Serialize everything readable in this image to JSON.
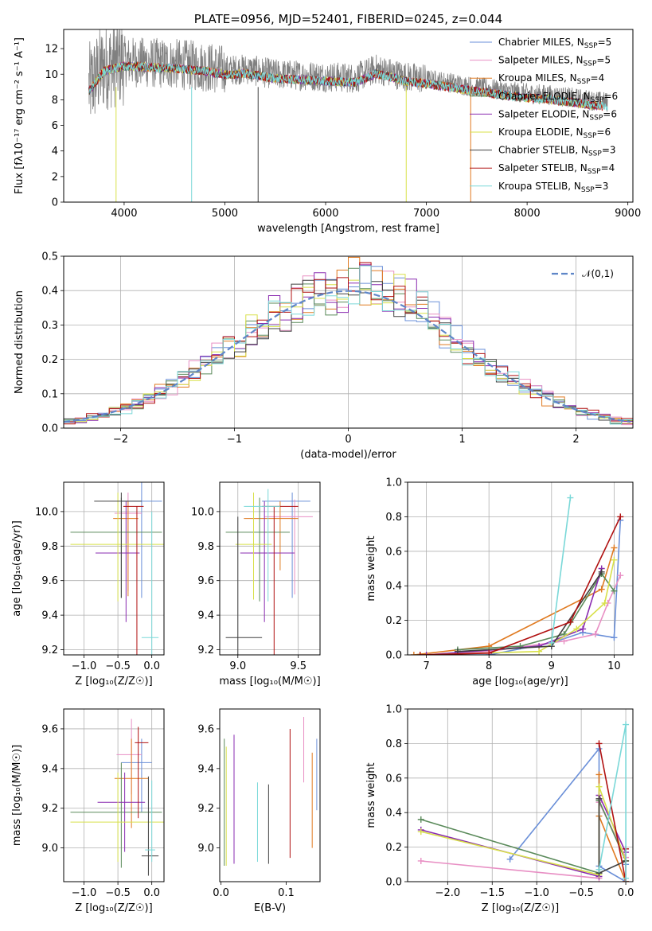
{
  "colors": [
    "#6a8fd8",
    "#e88fc4",
    "#e07a20",
    "#5a8a5a",
    "#8a2bb0",
    "#d8e04a",
    "#404040",
    "#b01010",
    "#7ad8d8"
  ],
  "chart_data": [
    {
      "id": "spectrum",
      "type": "line",
      "title": "PLATE=0956, MJD=52401, FIBERID=0245, z=0.044",
      "xlabel": "wavelength [Angstrom, rest frame]",
      "ylabel": "Flux [fλ10⁻¹⁷ erg cm⁻² s⁻¹ A⁻¹]",
      "xlim": [
        3400,
        9050
      ],
      "ylim": [
        0,
        13.5
      ],
      "xticks": [
        4000,
        5000,
        6000,
        7000,
        8000,
        9000
      ],
      "yticks": [
        0,
        2,
        4,
        6,
        8,
        10,
        12
      ],
      "grid": false,
      "legend_position": "upper right",
      "legend": [
        {
          "name": "Chabrier MILES",
          "n": "N",
          "sub": "SSP",
          "eq": "=5"
        },
        {
          "name": "Salpeter MILES",
          "n": "N",
          "sub": "SSP",
          "eq": "=5"
        },
        {
          "name": "Kroupa MILES",
          "n": "N",
          "sub": "SSP",
          "eq": "=4"
        },
        {
          "name": "Chabrier ELODIE",
          "n": "N",
          "sub": "SSP",
          "eq": "=6"
        },
        {
          "name": "Salpeter ELODIE",
          "n": "N",
          "sub": "SSP",
          "eq": "=6"
        },
        {
          "name": "Kroupa ELODIE",
          "n": "N",
          "sub": "SSP",
          "eq": "=6"
        },
        {
          "name": "Chabrier STELIB",
          "n": "N",
          "sub": "SSP",
          "eq": "=3"
        },
        {
          "name": "Salpeter STELIB",
          "n": "N",
          "sub": "SSP",
          "eq": "=4"
        },
        {
          "name": "Kroupa STELIB",
          "n": "N",
          "sub": "SSP",
          "eq": "=3"
        }
      ],
      "continuum_x": [
        3650,
        3800,
        4000,
        4200,
        4500,
        4800,
        5000,
        5200,
        5500,
        5800,
        6000,
        6300,
        6500,
        6800,
        7000,
        7200,
        7400,
        7600,
        7800,
        8000,
        8200,
        8500,
        8800
      ],
      "continuum_y": [
        9.0,
        10.6,
        11.0,
        10.9,
        10.8,
        10.6,
        10.3,
        10.4,
        10.0,
        9.9,
        9.8,
        9.7,
        10.4,
        9.8,
        9.6,
        9.4,
        9.1,
        8.9,
        8.7,
        8.5,
        8.4,
        8.1,
        7.8
      ]
    },
    {
      "id": "residuals",
      "type": "histogram",
      "xlabel": "(data-model)/error",
      "ylabel": "Normed distribution",
      "xlim": [
        -2.5,
        2.5
      ],
      "ylim": [
        0,
        0.5
      ],
      "xticks": [
        -2,
        -1,
        0,
        1,
        2
      ],
      "yticks": [
        0.0,
        0.1,
        0.2,
        0.3,
        0.4,
        0.5
      ],
      "grid": true,
      "legend_position": "upper right",
      "legend": [
        "𝒩(0,1)"
      ],
      "bin_edges_start": -2.5,
      "bin_width": 0.1,
      "reference_curve": "gaussian mean 0 sigma 1"
    },
    {
      "id": "z-vs-age",
      "type": "errorbar",
      "xlabel": "Z [log₁₀(Z/Z☉)]",
      "ylabel": "age  [log₁₀(age/yr)]",
      "xlim": [
        -1.3,
        0.18
      ],
      "ylim": [
        9.17,
        10.17
      ],
      "xticks": [
        -1.0,
        -0.5,
        0.0
      ],
      "yticks": [
        9.2,
        9.4,
        9.6,
        9.8,
        10.0
      ],
      "grid": true,
      "points": [
        {
          "x": -0.15,
          "xerr": [
            0.3,
            0.3
          ],
          "y": 10.06,
          "yerr": [
            0.56,
            0.14
          ]
        },
        {
          "x": -0.35,
          "xerr": [
            0.2,
            0.2
          ],
          "y": 9.99,
          "yerr": [
            0.45,
            0.12
          ]
        },
        {
          "x": -0.35,
          "xerr": [
            0.22,
            0.15
          ],
          "y": 9.96,
          "yerr": [
            0.45,
            0.1
          ]
        },
        {
          "x": -0.45,
          "xerr": [
            0.75,
            0.6
          ],
          "y": 9.88,
          "yerr": [
            0.38,
            0.2
          ]
        },
        {
          "x": -0.38,
          "xerr": [
            0.45,
            0.2
          ],
          "y": 9.76,
          "yerr": [
            0.4,
            0.3
          ]
        },
        {
          "x": -0.5,
          "xerr": [
            0.7,
            0.7
          ],
          "y": 9.81,
          "yerr": [
            0.33,
            0.3
          ]
        },
        {
          "x": -0.45,
          "xerr": [
            0.4,
            0.3
          ],
          "y": 10.06,
          "yerr": [
            0.56,
            0.05
          ]
        },
        {
          "x": -0.22,
          "xerr": [
            0.2,
            0.1
          ],
          "y": 10.03,
          "yerr": [
            0.9,
            0.0
          ]
        },
        {
          "x": 0.0,
          "xerr": [
            0.15,
            0.1
          ],
          "y": 9.27,
          "yerr": [
            0.1,
            0.73
          ]
        }
      ]
    },
    {
      "id": "mass-vs-age",
      "type": "errorbar",
      "xlabel": "mass [log₁₀(M/M☉)]",
      "ylabel": "",
      "xlim": [
        8.85,
        9.68
      ],
      "ylim": [
        9.17,
        10.17
      ],
      "xticks": [
        9.0,
        9.5
      ],
      "yticks": [
        9.2,
        9.4,
        9.6,
        9.8,
        10.0
      ],
      "grid": true,
      "points": [
        {
          "x": 9.45,
          "xerr": [
            0.25,
            0.15
          ],
          "y": 10.06,
          "yerr": [
            0.56,
            0.05
          ]
        },
        {
          "x": 9.47,
          "xerr": [
            0.25,
            0.15
          ],
          "y": 9.97,
          "yerr": [
            0.45,
            0.1
          ]
        },
        {
          "x": 9.35,
          "xerr": [
            0.3,
            0.15
          ],
          "y": 9.96,
          "yerr": [
            0.3,
            0.1
          ]
        },
        {
          "x": 9.18,
          "xerr": [
            0.28,
            0.25
          ],
          "y": 9.88,
          "yerr": [
            0.4,
            0.2
          ]
        },
        {
          "x": 9.22,
          "xerr": [
            0.2,
            0.25
          ],
          "y": 9.76,
          "yerr": [
            0.4,
            0.3
          ]
        },
        {
          "x": 9.13,
          "xerr": [
            0.15,
            0.15
          ],
          "y": 9.81,
          "yerr": [
            0.32,
            0.3
          ]
        },
        {
          "x": 9.0,
          "xerr": [
            0.1,
            0.2
          ],
          "y": 9.27,
          "yerr": [
            0.6,
            0.7
          ]
        },
        {
          "x": 9.3,
          "xerr": [
            0.1,
            0.2
          ],
          "y": 10.03,
          "yerr": [
            0.9,
            0.0
          ]
        },
        {
          "x": 9.25,
          "xerr": [
            0.2,
            0.1
          ],
          "y": 10.03,
          "yerr": [
            0.55,
            0.1
          ]
        }
      ]
    },
    {
      "id": "age-vs-weight",
      "type": "line",
      "xlabel": "age  [log₁₀(age/yr)]",
      "ylabel": "mass weight",
      "xlim": [
        6.7,
        10.3
      ],
      "ylim": [
        0,
        1.0
      ],
      "xticks": [
        7,
        8,
        9,
        10
      ],
      "yticks": [
        0.0,
        0.2,
        0.4,
        0.6,
        0.8,
        1.0
      ],
      "grid": true,
      "series": [
        {
          "x": [
            6.9,
            8.0,
            9.0,
            9.5,
            10.0,
            10.1
          ],
          "y": [
            0.0,
            0.0,
            0.07,
            0.13,
            0.1,
            0.78
          ]
        },
        {
          "x": [
            6.9,
            8.0,
            9.2,
            9.7,
            9.9,
            10.1
          ],
          "y": [
            0.0,
            0.02,
            0.08,
            0.12,
            0.3,
            0.46
          ]
        },
        {
          "x": [
            6.8,
            8.0,
            9.8,
            10.0
          ],
          "y": [
            0.0,
            0.05,
            0.38,
            0.62
          ]
        },
        {
          "x": [
            7.5,
            8.5,
            9.2,
            9.8,
            10.0
          ],
          "y": [
            0.03,
            0.05,
            0.12,
            0.47,
            0.37
          ]
        },
        {
          "x": [
            7.0,
            8.8,
            9.5,
            9.8
          ],
          "y": [
            0.0,
            0.05,
            0.15,
            0.5
          ]
        },
        {
          "x": [
            6.9,
            8.8,
            9.4,
            9.85,
            10.0
          ],
          "y": [
            0.0,
            0.02,
            0.15,
            0.3,
            0.55
          ]
        },
        {
          "x": [
            7.5,
            9.0,
            9.8
          ],
          "y": [
            0.02,
            0.05,
            0.48
          ]
        },
        {
          "x": [
            6.9,
            8.0,
            9.3,
            10.1
          ],
          "y": [
            0.0,
            0.01,
            0.19,
            0.8
          ]
        },
        {
          "x": [
            9.0,
            9.3
          ],
          "y": [
            0.07,
            0.91
          ]
        }
      ]
    },
    {
      "id": "z-vs-mass",
      "type": "errorbar",
      "xlabel": "Z [log₁₀(Z/Z☉)]",
      "ylabel": "mass [log₁₀(M/M☉)]",
      "xlim": [
        -1.3,
        0.18
      ],
      "ylim": [
        8.83,
        9.7
      ],
      "xticks": [
        -1.0,
        -0.5,
        0.0
      ],
      "yticks": [
        9.0,
        9.2,
        9.4,
        9.6
      ],
      "grid": true,
      "points": [
        {
          "x": -0.15,
          "xerr": [
            0.3,
            0.15
          ],
          "y": 9.43,
          "yerr": [
            0.25,
            0.12
          ]
        },
        {
          "x": -0.3,
          "xerr": [
            0.22,
            0.15
          ],
          "y": 9.47,
          "yerr": [
            0.2,
            0.18
          ]
        },
        {
          "x": -0.3,
          "xerr": [
            0.25,
            0.25
          ],
          "y": 9.35,
          "yerr": [
            0.25,
            0.2
          ]
        },
        {
          "x": -0.45,
          "xerr": [
            0.75,
            0.6
          ],
          "y": 9.18,
          "yerr": [
            0.28,
            0.25
          ]
        },
        {
          "x": -0.4,
          "xerr": [
            0.4,
            0.3
          ],
          "y": 9.23,
          "yerr": [
            0.25,
            0.15
          ]
        },
        {
          "x": -0.5,
          "xerr": [
            0.7,
            0.7
          ],
          "y": 9.13,
          "yerr": [
            0.2,
            0.25
          ]
        },
        {
          "x": -0.05,
          "xerr": [
            0.1,
            0.15
          ],
          "y": 8.96,
          "yerr": [
            0.1,
            0.4
          ]
        },
        {
          "x": -0.2,
          "xerr": [
            0.05,
            0.15
          ],
          "y": 9.53,
          "yerr": [
            0.38,
            0.08
          ]
        },
        {
          "x": 0.0,
          "xerr": [
            0.1,
            0.05
          ],
          "y": 8.99,
          "yerr": [
            0.06,
            0.35
          ]
        }
      ]
    },
    {
      "id": "ebv-vs-mass",
      "type": "errorbar",
      "xlabel": "E(B-V)",
      "ylabel": "",
      "xlim": [
        -0.002,
        0.152
      ],
      "ylim": [
        8.83,
        9.7
      ],
      "xticks": [
        0.0,
        0.1
      ],
      "yticks": [
        9.0,
        9.2,
        9.4,
        9.6
      ],
      "grid": false,
      "points": [
        {
          "x": 0.147,
          "y": 9.36,
          "yerr": [
            0.17,
            0.19
          ]
        },
        {
          "x": 0.127,
          "y": 9.49,
          "yerr": [
            0.16,
            0.17
          ]
        },
        {
          "x": 0.14,
          "y": 9.23,
          "yerr": [
            0.23,
            0.25
          ]
        },
        {
          "x": 0.005,
          "y": 9.21,
          "yerr": [
            0.3,
            0.34
          ]
        },
        {
          "x": 0.02,
          "y": 9.24,
          "yerr": [
            0.32,
            0.33
          ]
        },
        {
          "x": 0.008,
          "y": 9.21,
          "yerr": [
            0.3,
            0.3
          ]
        },
        {
          "x": 0.073,
          "y": 9.09,
          "yerr": [
            0.17,
            0.23
          ]
        },
        {
          "x": 0.106,
          "y": 9.33,
          "yerr": [
            0.38,
            0.27
          ]
        },
        {
          "x": 0.056,
          "y": 9.13,
          "yerr": [
            0.2,
            0.2
          ]
        }
      ]
    },
    {
      "id": "z-vs-weight",
      "type": "line",
      "xlabel": "Z [log₁₀(Z/Z☉)]",
      "ylabel": "mass weight",
      "xlim": [
        -2.45,
        0.08
      ],
      "ylim": [
        0,
        1.0
      ],
      "xticks": [
        -2.0,
        -1.5,
        -1.0,
        -0.5,
        0.0
      ],
      "yticks": [
        0.0,
        0.2,
        0.4,
        0.6,
        0.8,
        1.0
      ],
      "grid": true,
      "series": [
        {
          "x": [
            -1.3,
            -0.3,
            -0.3,
            0.0,
            0.0
          ],
          "y": [
            0.13,
            0.77,
            0.09,
            0.0,
            0.1
          ]
        },
        {
          "x": [
            -2.3,
            -0.3,
            -0.3,
            0.0
          ],
          "y": [
            0.12,
            0.02,
            0.46,
            0.14
          ]
        },
        {
          "x": [
            -0.3,
            -0.3,
            0.0
          ],
          "y": [
            0.62,
            0.38,
            0.0
          ]
        },
        {
          "x": [
            -2.3,
            -0.3,
            -0.3,
            0.0
          ],
          "y": [
            0.36,
            0.05,
            0.47,
            0.12
          ]
        },
        {
          "x": [
            -2.3,
            -0.3,
            -0.3,
            0.0
          ],
          "y": [
            0.3,
            0.03,
            0.5,
            0.17
          ]
        },
        {
          "x": [
            -2.3,
            -0.3,
            -0.3,
            0.0
          ],
          "y": [
            0.29,
            0.04,
            0.55,
            0.12
          ]
        },
        {
          "x": [
            -0.3,
            -0.3,
            0.0
          ],
          "y": [
            0.48,
            0.05,
            0.12
          ]
        },
        {
          "x": [
            -0.3,
            0.0,
            0.0
          ],
          "y": [
            0.8,
            0.0,
            0.19
          ]
        },
        {
          "x": [
            -0.3,
            0.0,
            0.0
          ],
          "y": [
            0.07,
            0.91,
            0.02
          ]
        }
      ]
    }
  ]
}
